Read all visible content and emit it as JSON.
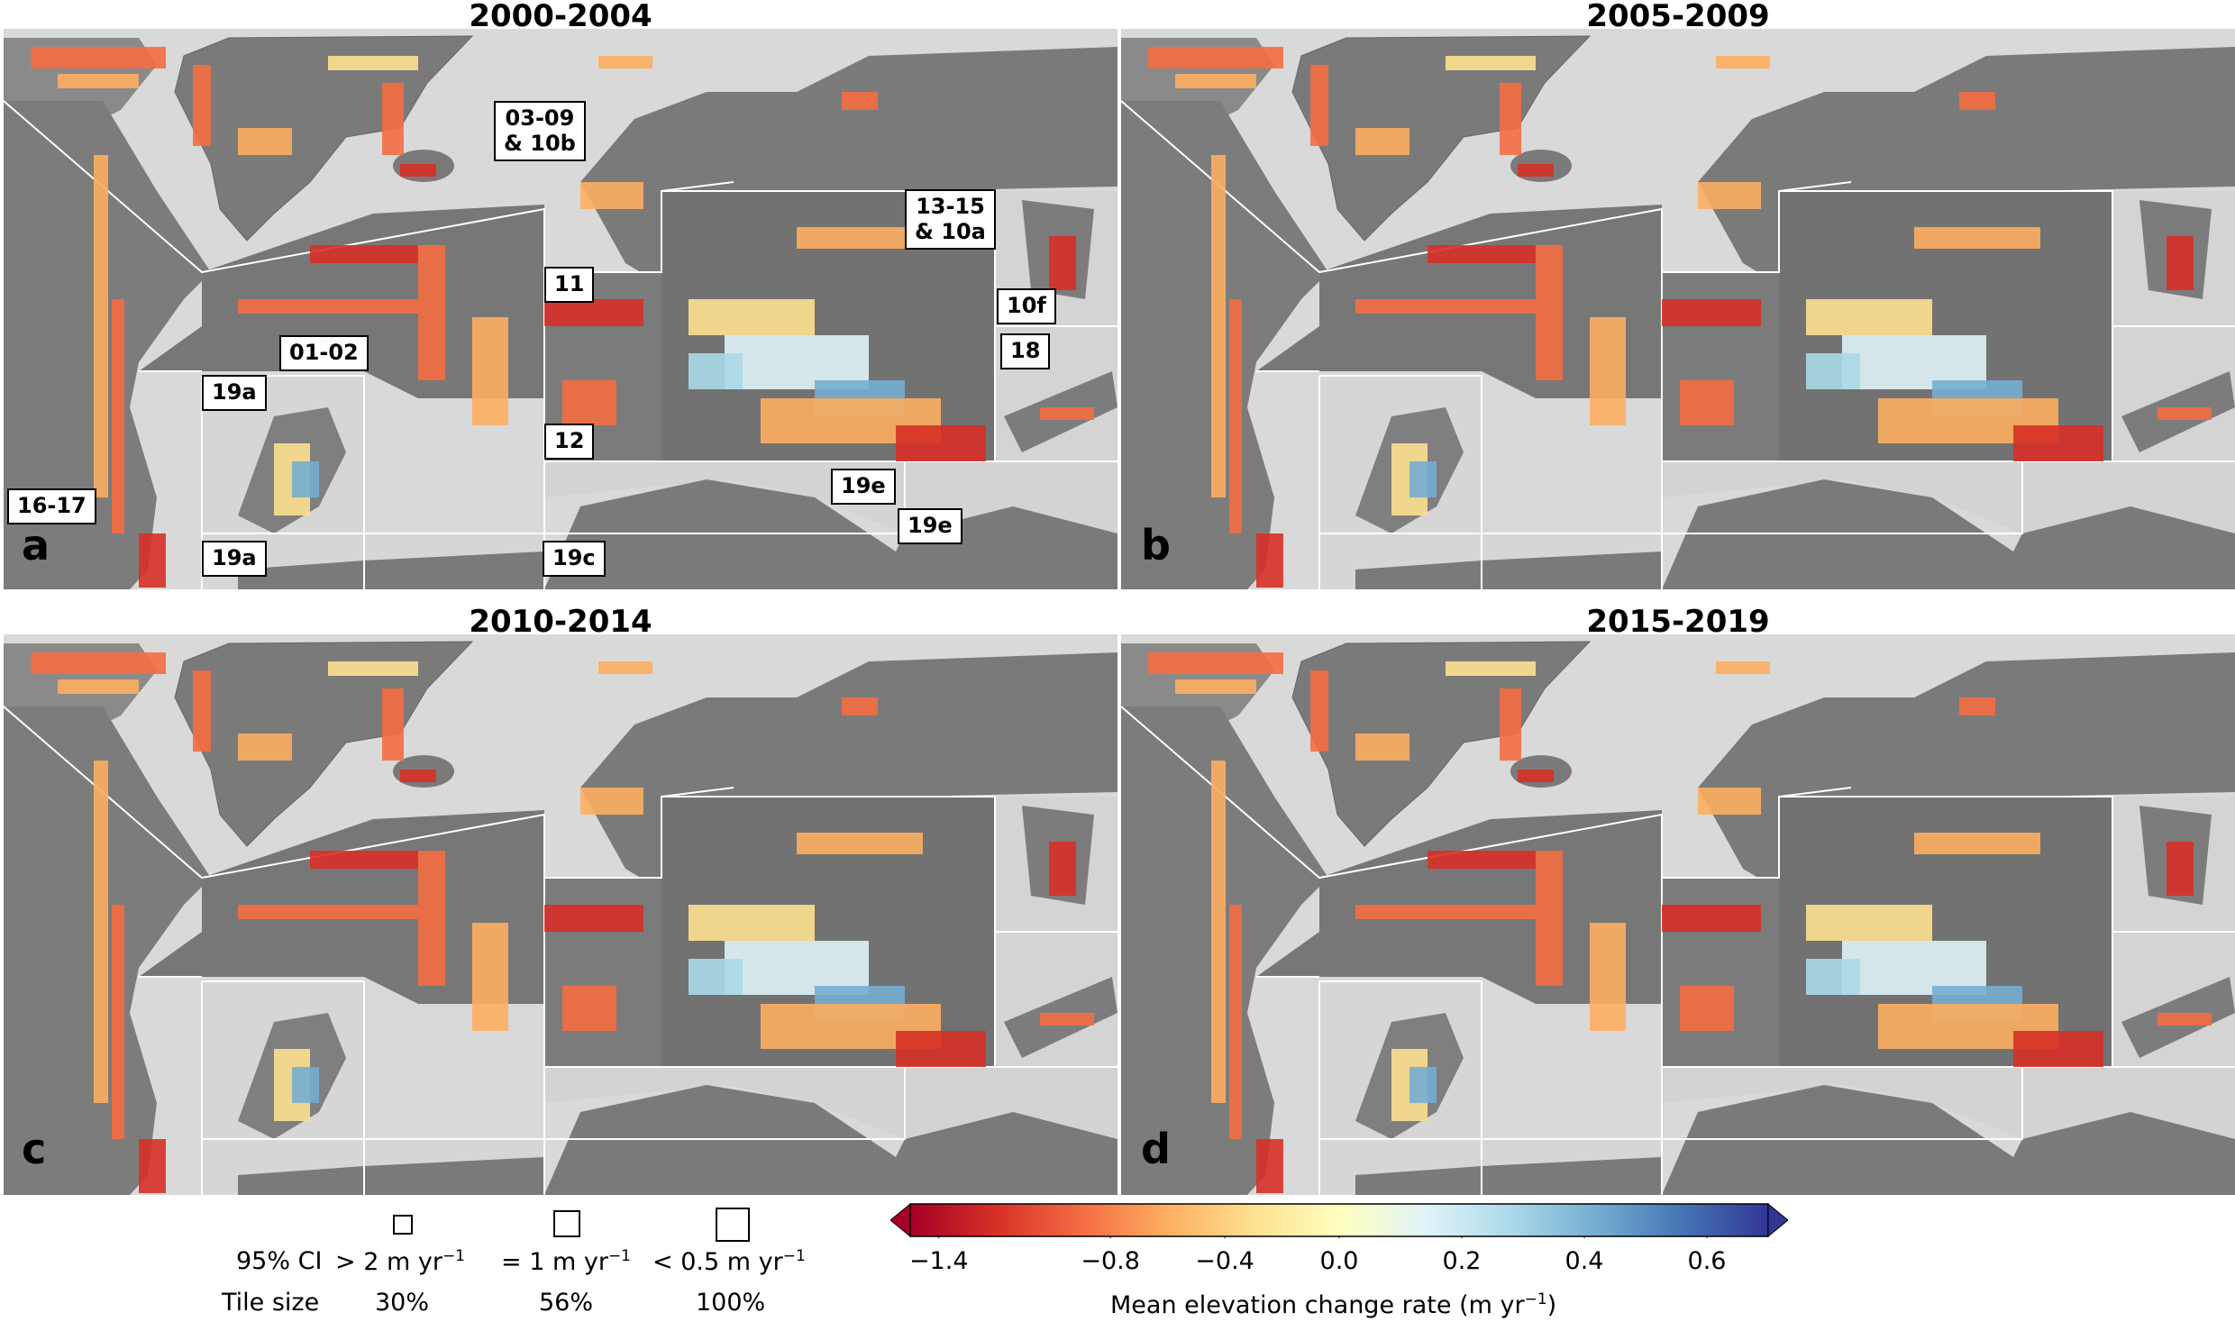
{
  "panels": [
    {
      "letter": "a",
      "title": "2000-2004"
    },
    {
      "letter": "b",
      "title": "2005-2009"
    },
    {
      "letter": "c",
      "title": "2010-2014"
    },
    {
      "letter": "d",
      "title": "2015-2019"
    }
  ],
  "region_labels": {
    "r0309": "03-09",
    "r10b": "& 10b",
    "r1315": "13-15",
    "r10a": "& 10a",
    "r11": "11",
    "r10f": "10f",
    "r0102": "01-02",
    "r18": "18",
    "r19a_top": "19a",
    "r12": "12",
    "r1617": "16-17",
    "r19e_a": "19e",
    "r19e_b": "19e",
    "r19a_bottom": "19a",
    "r19c": "19c"
  },
  "legend": {
    "ci_label": "95% CI",
    "tile_size_label": "Tile size",
    "items": [
      {
        "ci_prefix": "> 2 m yr",
        "exp": "−1",
        "pct": "30%"
      },
      {
        "ci_prefix": "= 1 m yr",
        "exp": "−1",
        "pct": "56%"
      },
      {
        "ci_prefix": "< 0.5 m yr",
        "exp": "−1",
        "pct": "100%"
      }
    ]
  },
  "colorbar": {
    "label_prefix": "Mean elevation change rate (m yr",
    "label_exp": "−1",
    "label_suffix": ")",
    "min": -1.5,
    "max": 0.7,
    "center": 0.0,
    "ticks": [
      "−1.4",
      "−0.8",
      "−0.4",
      "0.0",
      "0.2",
      "0.4",
      "0.6"
    ],
    "tick_values": [
      -1.4,
      -0.8,
      -0.4,
      0.0,
      0.2,
      0.4,
      0.6
    ],
    "extend": "both",
    "colormap": "RdYlBu",
    "colors": [
      "#a50026",
      "#d73027",
      "#f46d43",
      "#fdae61",
      "#fee090",
      "#ffffbf",
      "#e0f3f8",
      "#abd9e9",
      "#74add1",
      "#4575b4",
      "#313695"
    ]
  }
}
